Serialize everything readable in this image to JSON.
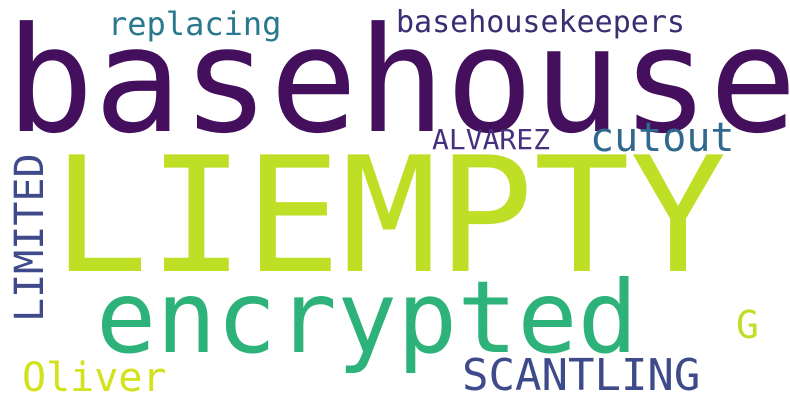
{
  "words": {
    "basehouse": "basehouse",
    "liempty": "LIEMPTY",
    "encrypted": "encrypted",
    "replacing": "replacing",
    "basehousekeepers": "basehousekeepers",
    "alvarez": "ALVAREZ",
    "cutout": "cutout",
    "limited": "LIMITED",
    "g": "G",
    "oliver": "Oliver",
    "scantling": "SCANTLING"
  },
  "colors": {
    "background": "#ffffff",
    "dark_purple": "#440f5c",
    "lime": "#bedf26",
    "green": "#2db37a",
    "teal": "#2a788e",
    "indigo": "#3b2d73",
    "blue": "#31688e",
    "slate": "#3e4a89",
    "yellow_green": "#d2e21b"
  }
}
